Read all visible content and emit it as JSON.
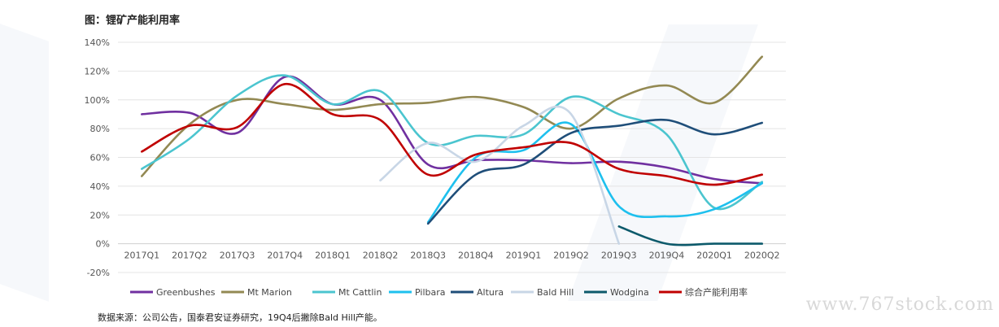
{
  "title": "图：锂矿产能利用率",
  "source": "数据来源：公司公告，国泰君安证券研究，19Q4后撇除Bald Hill产能。",
  "watermark": "www.767stock.com",
  "chart_data": {
    "type": "line",
    "title": "图：锂矿产能利用率",
    "xlabel": "",
    "ylabel": "",
    "categories": [
      "2017Q1",
      "2017Q2",
      "2017Q3",
      "2017Q4",
      "2018Q1",
      "2018Q2",
      "2018Q3",
      "2018Q4",
      "2019Q1",
      "2019Q2",
      "2019Q3",
      "2019Q4",
      "2020Q1",
      "2020Q2"
    ],
    "ylim": [
      -20,
      140
    ],
    "yticks": [
      "-20%",
      "0%",
      "20%",
      "40%",
      "60%",
      "80%",
      "100%",
      "120%",
      "140%"
    ],
    "grid": true,
    "legend_position": "bottom",
    "series": [
      {
        "name": "Greenbushes",
        "color": "#7030a0",
        "values": [
          90,
          91,
          77,
          116,
          97,
          100,
          55,
          58,
          58,
          56,
          57,
          53,
          45,
          42
        ]
      },
      {
        "name": "Mt Marion",
        "color": "#938953",
        "values": [
          47,
          83,
          100,
          97,
          93,
          97,
          98,
          102,
          95,
          80,
          101,
          110,
          98,
          130
        ]
      },
      {
        "name": "Mt Cattlin",
        "color": "#4bc5cf",
        "values": [
          52,
          73,
          103,
          117,
          97,
          106,
          70,
          75,
          76,
          102,
          90,
          76,
          25,
          43
        ]
      },
      {
        "name": "Pilbara",
        "color": "#1ec0ee",
        "values": [
          null,
          null,
          null,
          null,
          null,
          null,
          15,
          60,
          65,
          83,
          26,
          19,
          24,
          42
        ]
      },
      {
        "name": "Altura",
        "color": "#1f4e79",
        "values": [
          null,
          null,
          null,
          null,
          null,
          null,
          14,
          48,
          55,
          77,
          82,
          86,
          76,
          84
        ]
      },
      {
        "name": "Bald Hill",
        "color": "#c8d6e6",
        "values": [
          null,
          null,
          null,
          null,
          null,
          44,
          70,
          57,
          82,
          90,
          0,
          null,
          null,
          null
        ]
      },
      {
        "name": "Wodgina",
        "color": "#0d5a6b",
        "values": [
          null,
          null,
          null,
          null,
          null,
          null,
          null,
          null,
          null,
          null,
          12,
          0,
          0,
          0
        ]
      },
      {
        "name": "综合产能利用率",
        "color": "#c00000",
        "values": [
          64,
          82,
          81,
          111,
          90,
          86,
          48,
          62,
          67,
          70,
          52,
          47,
          41,
          48
        ]
      }
    ]
  }
}
